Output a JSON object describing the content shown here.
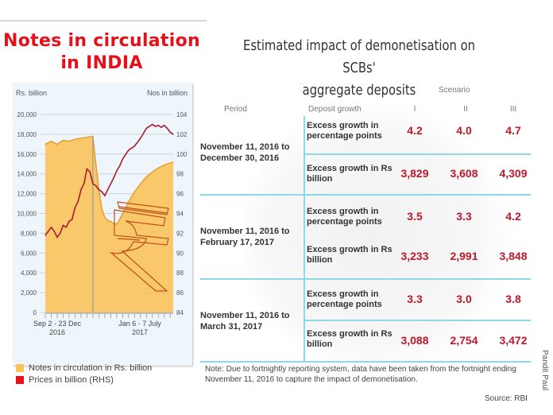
{
  "left_panel": {
    "title_line1": "Notes in circulation",
    "title_line2": "in INDIA",
    "legend": [
      {
        "label": "Notes in circulation in Rs. billion",
        "color": "#f9c35a"
      },
      {
        "label": "Prices in billion (RHS)",
        "color": "#e5101a"
      }
    ]
  },
  "chart_data": {
    "type": "area",
    "title": "Notes in circulation in INDIA",
    "y_left_label": "Rs. billion",
    "y_right_label": "Nos in billion",
    "y_left_ticks": [
      "20,000",
      "18,000",
      "16,000",
      "14,000",
      "12,000",
      "10,000",
      "8,000",
      "6,000",
      "4,000",
      "2,000",
      "0"
    ],
    "y_right_ticks": [
      "104",
      "102",
      "100",
      "98",
      "96",
      "94",
      "92",
      "90",
      "88",
      "86",
      "84"
    ],
    "y_left_range": [
      0,
      20000
    ],
    "y_right_range": [
      84,
      104
    ],
    "x_labels": [
      {
        "line1": "Sep 2 - 23 Dec",
        "line2": "2016"
      },
      {
        "line1": "Jan 6 - 7 July",
        "line2": "2017"
      }
    ],
    "x_index_count": 44,
    "divider_index": 16,
    "grid": true,
    "series": [
      {
        "name": "Notes in circulation in Rs. billion",
        "axis": "left",
        "kind": "area",
        "color": "#f9c35a",
        "x": [
          0,
          2,
          4,
          6,
          8,
          10,
          12,
          14,
          16,
          17,
          18,
          19,
          20,
          21,
          22,
          23,
          24,
          25,
          26,
          27,
          28,
          30,
          32,
          34,
          36,
          38,
          40,
          42,
          43
        ],
        "values": [
          17000,
          17300,
          17000,
          17400,
          17300,
          17500,
          17600,
          17700,
          17800,
          15000,
          12500,
          10500,
          9600,
          9300,
          9200,
          9000,
          8900,
          9400,
          10000,
          10600,
          11200,
          12200,
          13000,
          13700,
          14200,
          14600,
          14900,
          15100,
          15200
        ]
      },
      {
        "name": "Prices in billion (RHS)",
        "axis": "right",
        "kind": "line",
        "color": "#a81c2c",
        "x": [
          0,
          2,
          3,
          4,
          5,
          6,
          7,
          8,
          9,
          10,
          11,
          12,
          13,
          14,
          15,
          16,
          17,
          18,
          19,
          20,
          21,
          22,
          23,
          24,
          25,
          26,
          28,
          30,
          32,
          34,
          36,
          37,
          38,
          39,
          40,
          41,
          42,
          43
        ],
        "values": [
          91.8,
          92.6,
          92.2,
          91.6,
          92.0,
          92.8,
          92.6,
          93.2,
          93.4,
          94.6,
          95.2,
          96.4,
          97.0,
          98.5,
          98.2,
          97.0,
          96.8,
          96.4,
          96.2,
          95.8,
          96.4,
          97.0,
          97.6,
          98.3,
          98.8,
          99.5,
          100.4,
          100.8,
          101.6,
          102.6,
          103.0,
          102.8,
          102.9,
          102.7,
          102.9,
          102.6,
          102.2,
          102.0
        ]
      }
    ]
  },
  "right_panel": {
    "title_line1": "Estimated impact of demonetisation on SCBs'",
    "title_line2": "aggregate deposits",
    "headers": {
      "period": "Period",
      "deposit_growth": "Deposit growth",
      "scenario": "Scenario",
      "scenarios": [
        "I",
        "II",
        "III"
      ]
    },
    "rows": [
      {
        "period": "November 11, 2016 to December 30, 2016",
        "metrics": [
          {
            "label": "Excess growth in percentage points",
            "values": [
              "4.2",
              "4.0",
              "4.7"
            ]
          },
          {
            "label": "Excess growth in Rs billion",
            "values": [
              "3,829",
              "3,608",
              "4,309"
            ]
          }
        ]
      },
      {
        "period": "November 11, 2016 to February 17, 2017",
        "metrics": [
          {
            "label": "Excess growth in percentage points",
            "values": [
              "3.5",
              "3.3",
              "4.2"
            ]
          },
          {
            "label": "Excess growth in Rs billion",
            "values": [
              "3,233",
              "2,991",
              "3,848"
            ]
          }
        ]
      },
      {
        "period": "November 11, 2016 to March 31, 2017",
        "metrics": [
          {
            "label": "Excess growth in percentage points",
            "values": [
              "3.3",
              "3.0",
              "3.8"
            ]
          },
          {
            "label": "Excess growth in Rs billion",
            "values": [
              "3,088",
              "2,754",
              "3,472"
            ]
          }
        ]
      }
    ],
    "note": "Note: Due to fortnightly reporting system, data have been taken from the fortnight ending November 11, 2016 to capture the impact of demonetisation.",
    "source": "Source: RBI",
    "credit": "Pandit Paul"
  },
  "colors": {
    "title_red": "#e5101a",
    "value_red": "#c0182a",
    "area_fill": "#f9c35a",
    "line": "#a81c2c",
    "divider_cyan": "#8fd8e6"
  }
}
